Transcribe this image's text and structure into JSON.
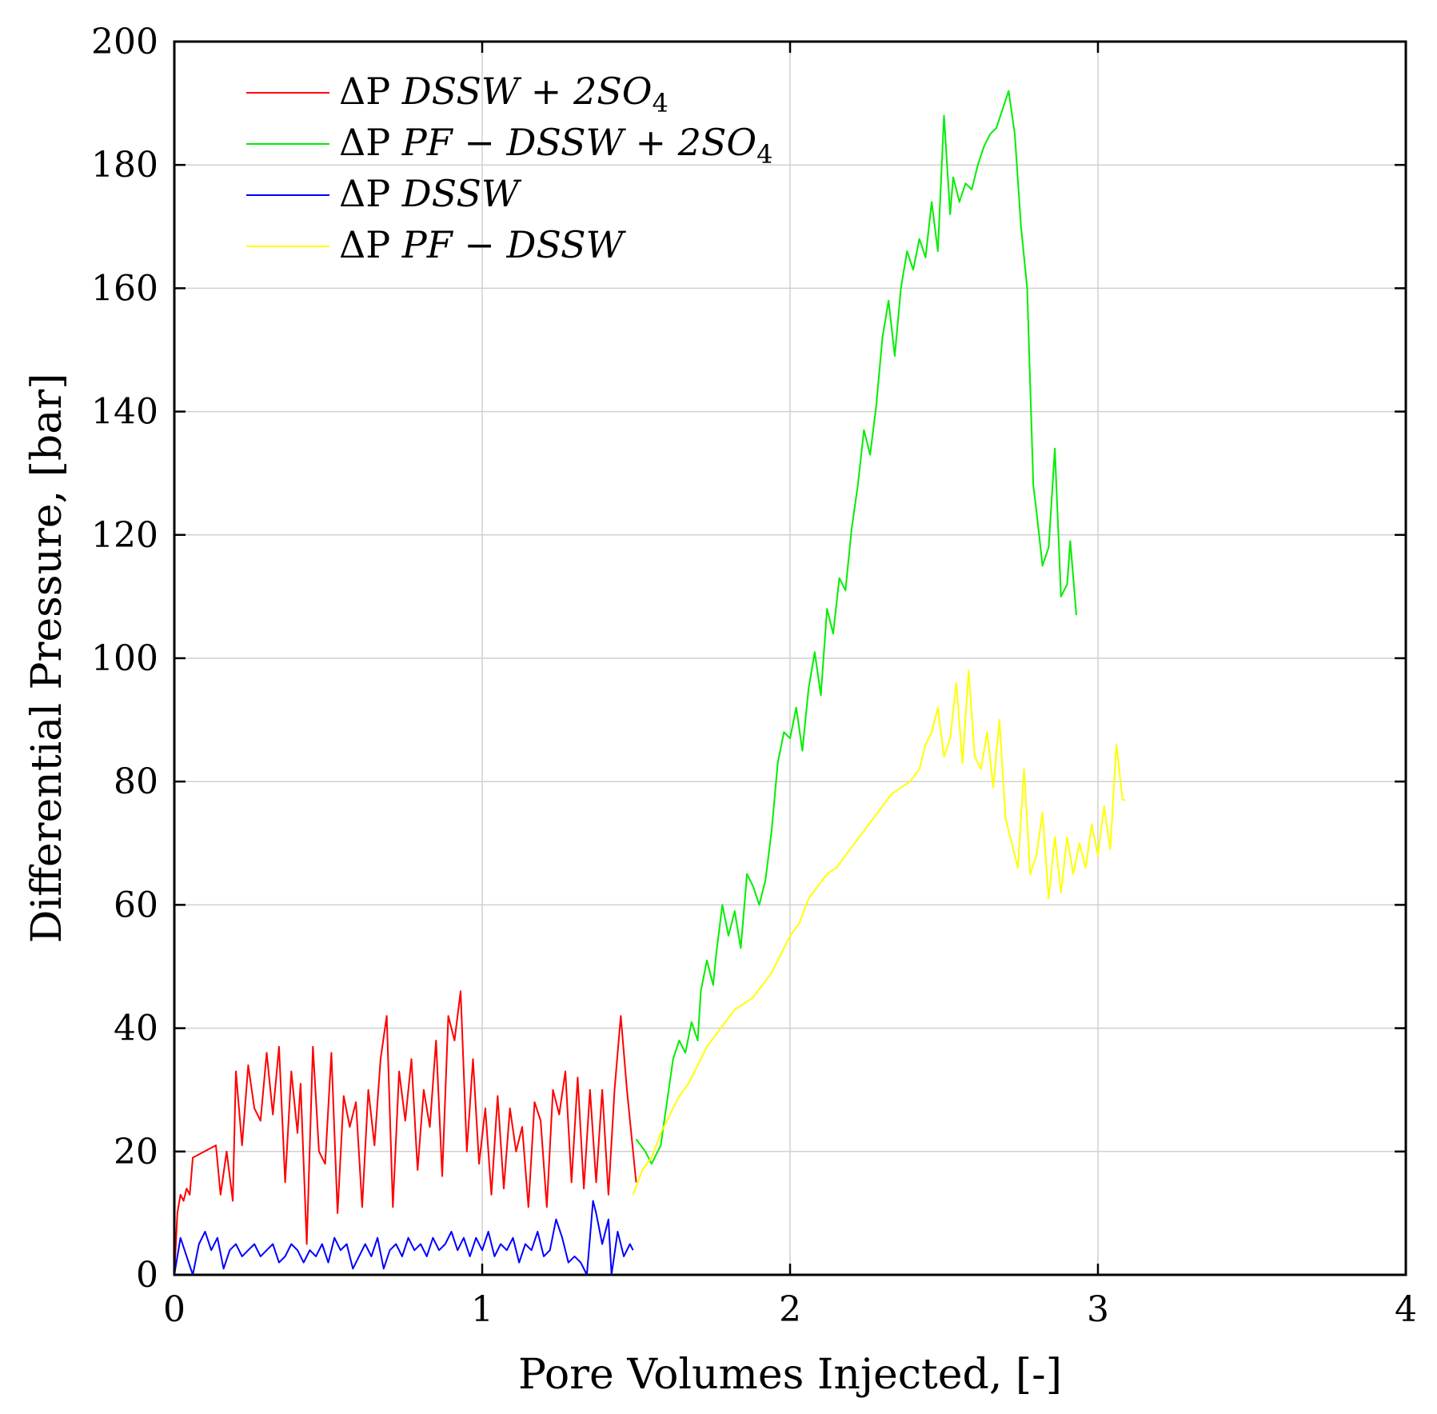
{
  "chart_data": {
    "type": "line",
    "title": "",
    "xlabel": "Pore Volumes Injected, [-]",
    "ylabel": "Differential Pressure, [bar]",
    "xlim": [
      0,
      4
    ],
    "ylim": [
      0,
      200
    ],
    "xticks": [
      0,
      1,
      2,
      3,
      4
    ],
    "yticks": [
      0,
      20,
      40,
      60,
      80,
      100,
      120,
      140,
      160,
      180,
      200
    ],
    "grid": true,
    "legend_position": "top-left",
    "series": [
      {
        "name": "ΔP DSSW + 2SO4",
        "legend_prefix": "ΔP",
        "legend_math": "DSSW + 2SO",
        "legend_sub": "4",
        "color": "#ff0000",
        "x": [
          0.0,
          0.01,
          0.02,
          0.03,
          0.04,
          0.05,
          0.06,
          0.135,
          0.15,
          0.17,
          0.19,
          0.2,
          0.22,
          0.24,
          0.26,
          0.28,
          0.3,
          0.32,
          0.34,
          0.36,
          0.38,
          0.4,
          0.41,
          0.43,
          0.45,
          0.47,
          0.49,
          0.51,
          0.53,
          0.55,
          0.57,
          0.59,
          0.61,
          0.63,
          0.65,
          0.67,
          0.69,
          0.71,
          0.73,
          0.75,
          0.77,
          0.79,
          0.81,
          0.83,
          0.85,
          0.87,
          0.89,
          0.91,
          0.93,
          0.95,
          0.97,
          0.99,
          1.01,
          1.03,
          1.05,
          1.07,
          1.09,
          1.11,
          1.13,
          1.15,
          1.17,
          1.19,
          1.21,
          1.23,
          1.25,
          1.27,
          1.29,
          1.31,
          1.33,
          1.35,
          1.37,
          1.39,
          1.41,
          1.43,
          1.45,
          1.47,
          1.5
        ],
        "y": [
          0,
          10,
          13,
          12,
          14,
          13,
          19,
          21,
          13,
          20,
          12,
          33,
          21,
          34,
          27,
          25,
          36,
          26,
          37,
          15,
          33,
          23,
          31,
          5,
          37,
          20,
          18,
          36,
          10,
          29,
          24,
          28,
          11,
          30,
          21,
          35,
          42,
          11,
          33,
          25,
          35,
          17,
          30,
          24,
          38,
          16,
          42,
          38,
          46,
          20,
          35,
          18,
          27,
          13,
          29,
          14,
          27,
          20,
          24,
          11,
          28,
          25,
          11,
          30,
          26,
          33,
          15,
          32,
          14,
          30,
          15,
          30,
          13,
          30,
          42,
          30,
          15
        ]
      },
      {
        "name": "ΔP PF − DSSW + 2SO4",
        "legend_prefix": "ΔP",
        "legend_math": "PF − DSSW + 2SO",
        "legend_sub": "4",
        "color": "#00ee00",
        "x": [
          1.5,
          1.53,
          1.55,
          1.58,
          1.6,
          1.62,
          1.64,
          1.66,
          1.68,
          1.7,
          1.71,
          1.73,
          1.75,
          1.76,
          1.78,
          1.8,
          1.82,
          1.84,
          1.86,
          1.88,
          1.9,
          1.92,
          1.94,
          1.96,
          1.98,
          2.0,
          2.02,
          2.04,
          2.06,
          2.08,
          2.1,
          2.12,
          2.14,
          2.16,
          2.18,
          2.2,
          2.22,
          2.24,
          2.26,
          2.28,
          2.3,
          2.32,
          2.34,
          2.36,
          2.38,
          2.4,
          2.42,
          2.44,
          2.46,
          2.48,
          2.5,
          2.52,
          2.53,
          2.55,
          2.57,
          2.59,
          2.61,
          2.63,
          2.65,
          2.67,
          2.69,
          2.71,
          2.73,
          2.75,
          2.77,
          2.79,
          2.8,
          2.82,
          2.84,
          2.86,
          2.88,
          2.9,
          2.91,
          2.93
        ],
        "y": [
          22,
          20,
          18,
          21,
          28,
          35,
          38,
          36,
          41,
          38,
          46,
          51,
          47,
          52,
          60,
          55,
          59,
          53,
          65,
          63,
          60,
          64,
          72,
          83,
          88,
          87,
          92,
          85,
          95,
          101,
          94,
          108,
          104,
          113,
          111,
          121,
          128,
          137,
          133,
          141,
          152,
          158,
          149,
          160,
          166,
          163,
          168,
          165,
          174,
          166,
          188,
          172,
          178,
          174,
          177,
          176,
          180,
          183,
          185,
          186,
          189,
          192,
          185,
          170,
          160,
          128,
          124,
          115,
          118,
          134,
          110,
          112,
          119,
          107
        ]
      },
      {
        "name": "ΔP DSSW",
        "legend_prefix": "ΔP",
        "legend_math": "DSSW",
        "legend_sub": "",
        "color": "#0000ff",
        "x": [
          0.0,
          0.02,
          0.04,
          0.06,
          0.08,
          0.1,
          0.12,
          0.14,
          0.16,
          0.18,
          0.2,
          0.22,
          0.24,
          0.26,
          0.28,
          0.3,
          0.32,
          0.34,
          0.36,
          0.38,
          0.4,
          0.42,
          0.44,
          0.46,
          0.48,
          0.5,
          0.52,
          0.54,
          0.56,
          0.58,
          0.6,
          0.62,
          0.64,
          0.66,
          0.68,
          0.7,
          0.72,
          0.74,
          0.76,
          0.78,
          0.8,
          0.82,
          0.84,
          0.86,
          0.88,
          0.9,
          0.92,
          0.94,
          0.96,
          0.98,
          1.0,
          1.02,
          1.04,
          1.06,
          1.08,
          1.1,
          1.12,
          1.14,
          1.16,
          1.18,
          1.2,
          1.22,
          1.24,
          1.26,
          1.28,
          1.3,
          1.32,
          1.34,
          1.36,
          1.37,
          1.39,
          1.41,
          1.42,
          1.44,
          1.46,
          1.48,
          1.49
        ],
        "y": [
          0,
          6,
          3,
          0,
          5,
          7,
          4,
          6,
          1,
          4,
          5,
          3,
          4,
          5,
          3,
          4,
          5,
          2,
          3,
          5,
          4,
          2,
          4,
          3,
          5,
          2,
          6,
          4,
          5,
          1,
          3,
          5,
          3,
          6,
          1,
          4,
          5,
          3,
          6,
          4,
          5,
          3,
          6,
          4,
          5,
          7,
          4,
          6,
          3,
          6,
          4,
          7,
          3,
          5,
          4,
          6,
          2,
          5,
          4,
          7,
          3,
          4,
          9,
          6,
          2,
          3,
          2,
          0,
          12,
          10,
          5,
          9,
          0,
          7,
          3,
          5,
          4
        ]
      },
      {
        "name": "ΔP PF − DSSW",
        "legend_prefix": "ΔP",
        "legend_math": "PF − DSSW",
        "legend_sub": "",
        "color": "#ffff00",
        "x": [
          1.49,
          1.52,
          1.55,
          1.58,
          1.61,
          1.64,
          1.67,
          1.7,
          1.73,
          1.76,
          1.79,
          1.82,
          1.85,
          1.88,
          1.91,
          1.94,
          1.97,
          2.0,
          2.03,
          2.06,
          2.09,
          2.12,
          2.15,
          2.18,
          2.21,
          2.24,
          2.27,
          2.3,
          2.33,
          2.36,
          2.39,
          2.42,
          2.44,
          2.46,
          2.48,
          2.5,
          2.52,
          2.54,
          2.56,
          2.58,
          2.6,
          2.62,
          2.64,
          2.66,
          2.68,
          2.7,
          2.72,
          2.74,
          2.76,
          2.78,
          2.8,
          2.82,
          2.84,
          2.86,
          2.88,
          2.9,
          2.92,
          2.94,
          2.96,
          2.98,
          3.0,
          3.02,
          3.04,
          3.06,
          3.08,
          3.09
        ],
        "y": [
          13,
          17,
          19,
          23,
          26,
          29,
          31,
          34,
          37,
          39,
          41,
          43,
          44,
          45,
          47,
          49,
          52,
          55,
          57,
          61,
          63,
          65,
          66,
          68,
          70,
          72,
          74,
          76,
          78,
          79,
          80,
          82,
          86,
          88,
          92,
          84,
          87,
          96,
          83,
          98,
          84,
          82,
          88,
          79,
          90,
          74,
          70,
          66,
          82,
          65,
          68,
          75,
          61,
          71,
          62,
          71,
          65,
          70,
          66,
          73,
          68,
          76,
          69,
          86,
          77,
          77
        ]
      }
    ]
  }
}
